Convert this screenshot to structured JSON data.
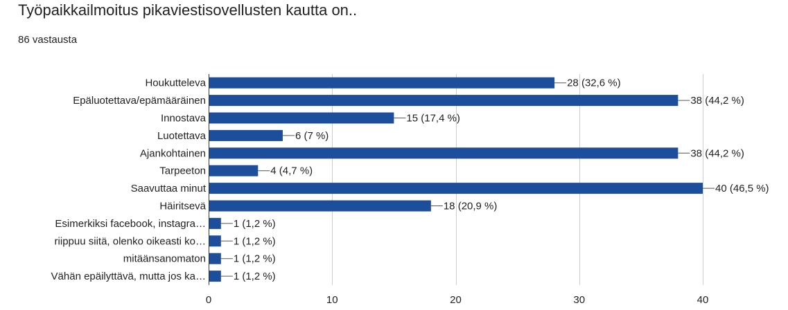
{
  "header": {
    "title": "Työpaikkailmoitus pikaviestisovellusten kautta on..",
    "responses": "86 vastausta"
  },
  "colors": {
    "bar": "#1c4e9b",
    "grid": "#cccccc",
    "axis": "#333333",
    "text": "#212121"
  },
  "chart_data": {
    "type": "bar",
    "orientation": "horizontal",
    "title": "Työpaikkailmoitus pikaviestisovellusten kautta on..",
    "xlim": [
      0,
      40
    ],
    "xticks": [
      0,
      10,
      20,
      30,
      40
    ],
    "grid": true,
    "categories": [
      "Houkutteleva",
      "Epäluotettava/epämääräinen",
      "Innostava",
      "Luotettava",
      "Ajankohtainen",
      "Tarpeeton",
      "Saavuttaa minut",
      "Häiritsevä",
      "Esimerkiksi facebook, instagra…",
      "riippuu siitä, olenko oikeasti ko…",
      "mitäänsanomaton",
      "Vähän epäilyttävä, mutta jos ka…"
    ],
    "values": [
      28,
      38,
      15,
      6,
      38,
      4,
      40,
      18,
      1,
      1,
      1,
      1
    ],
    "labels": [
      "28 (32,6 %)",
      "38 (44,2 %)",
      "15 (17,4 %)",
      "6 (7 %)",
      "38 (44,2 %)",
      "4 (4,7 %)",
      "40 (46,5 %)",
      "18 (20,9 %)",
      "1 (1,2 %)",
      "1 (1,2 %)",
      "1 (1,2 %)",
      "1 (1,2 %)"
    ]
  }
}
